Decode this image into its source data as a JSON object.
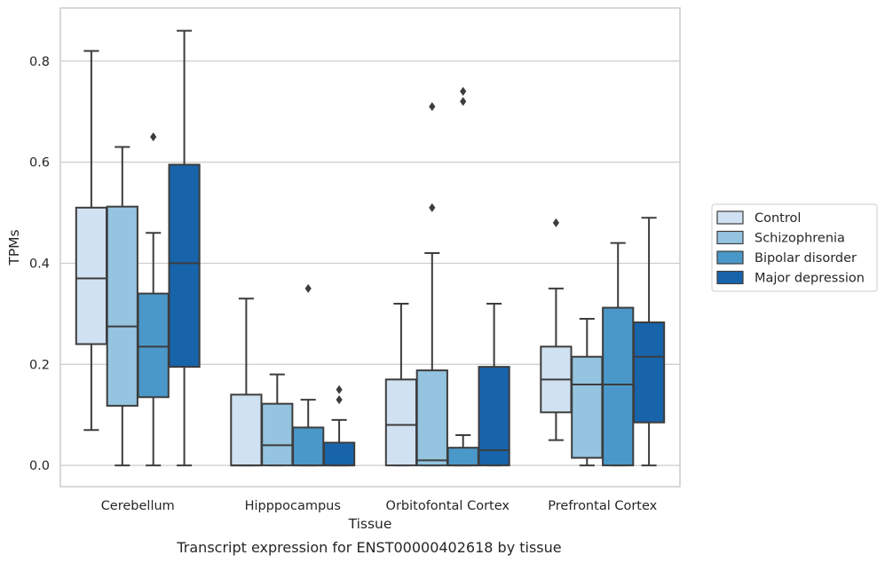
{
  "chart_data": {
    "type": "box",
    "xlabel": "Tissue",
    "ylabel": "TPMs",
    "caption": "Transcript expression for ENST00000402618 by tissue",
    "ylim": [
      -0.042,
      0.905
    ],
    "yticks": [
      0.0,
      0.2,
      0.4,
      0.6,
      0.8
    ],
    "ytick_labels": [
      "0.0",
      "0.2",
      "0.4",
      "0.6",
      "0.8"
    ],
    "grid": "horizontal",
    "legend_position": "right",
    "categories": [
      "Cerebellum",
      "Hipppocampus",
      "Orbitofontal Cortex",
      "Prefrontal Cortex"
    ],
    "series": [
      {
        "name": "Control",
        "color": "#d0e1f2",
        "boxes": [
          {
            "whislo": 0.07,
            "q1": 0.24,
            "med": 0.37,
            "q3": 0.51,
            "whishi": 0.82,
            "fliers": []
          },
          {
            "whislo": 0.0,
            "q1": 0.0,
            "med": 0.0,
            "q3": 0.14,
            "whishi": 0.33,
            "fliers": []
          },
          {
            "whislo": 0.0,
            "q1": 0.0,
            "med": 0.08,
            "q3": 0.17,
            "whishi": 0.32,
            "fliers": []
          },
          {
            "whislo": 0.05,
            "q1": 0.105,
            "med": 0.17,
            "q3": 0.235,
            "whishi": 0.35,
            "fliers": [
              0.48
            ]
          }
        ]
      },
      {
        "name": "Schizophrenia",
        "color": "#94c4df",
        "boxes": [
          {
            "whislo": 0.0,
            "q1": 0.118,
            "med": 0.275,
            "q3": 0.512,
            "whishi": 0.63,
            "fliers": []
          },
          {
            "whislo": 0.0,
            "q1": 0.0,
            "med": 0.04,
            "q3": 0.122,
            "whishi": 0.18,
            "fliers": []
          },
          {
            "whislo": 0.0,
            "q1": 0.0,
            "med": 0.01,
            "q3": 0.188,
            "whishi": 0.42,
            "fliers": [
              0.51,
              0.71
            ]
          },
          {
            "whislo": 0.0,
            "q1": 0.015,
            "med": 0.16,
            "q3": 0.215,
            "whishi": 0.29,
            "fliers": []
          }
        ]
      },
      {
        "name": "Bipolar disorder",
        "color": "#4a98c9",
        "boxes": [
          {
            "whislo": 0.0,
            "q1": 0.135,
            "med": 0.235,
            "q3": 0.34,
            "whishi": 0.46,
            "fliers": [
              0.65
            ]
          },
          {
            "whislo": 0.0,
            "q1": 0.0,
            "med": 0.0,
            "q3": 0.075,
            "whishi": 0.13,
            "fliers": [
              0.35
            ]
          },
          {
            "whislo": 0.0,
            "q1": 0.0,
            "med": 0.0,
            "q3": 0.035,
            "whishi": 0.06,
            "fliers": [
              0.72,
              0.74
            ]
          },
          {
            "whislo": 0.0,
            "q1": 0.0,
            "med": 0.16,
            "q3": 0.312,
            "whishi": 0.44,
            "fliers": []
          }
        ]
      },
      {
        "name": "Major depression",
        "color": "#1764ab",
        "boxes": [
          {
            "whislo": 0.0,
            "q1": 0.195,
            "med": 0.4,
            "q3": 0.595,
            "whishi": 0.86,
            "fliers": []
          },
          {
            "whislo": 0.0,
            "q1": 0.0,
            "med": 0.0,
            "q3": 0.045,
            "whishi": 0.09,
            "fliers": [
              0.13,
              0.15
            ]
          },
          {
            "whislo": 0.0,
            "q1": 0.0,
            "med": 0.03,
            "q3": 0.195,
            "whishi": 0.32,
            "fliers": []
          },
          {
            "whislo": 0.0,
            "q1": 0.085,
            "med": 0.215,
            "q3": 0.283,
            "whishi": 0.49,
            "fliers": []
          }
        ]
      }
    ]
  }
}
